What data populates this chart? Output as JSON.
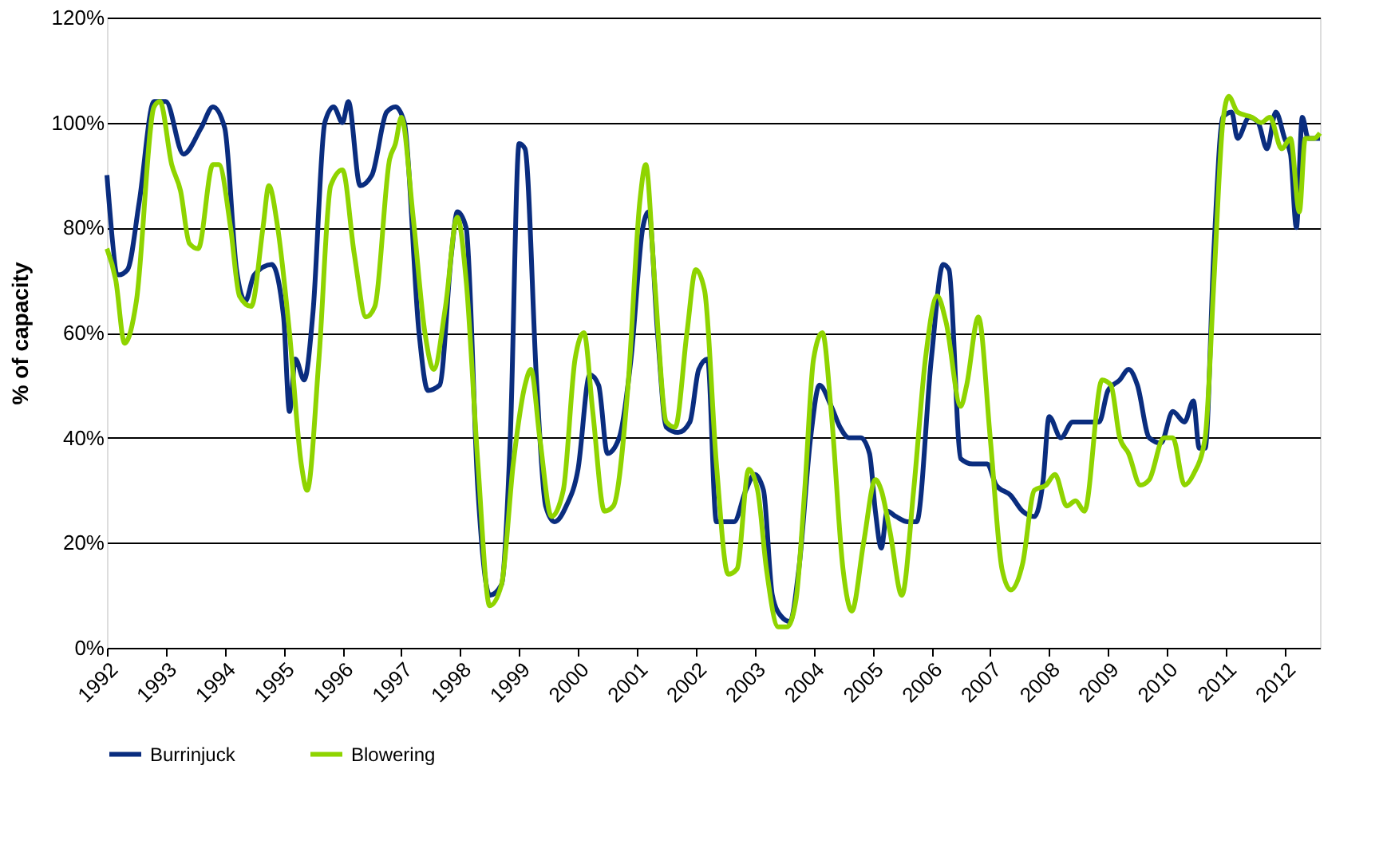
{
  "chart_data": {
    "type": "line",
    "ylabel": "% of capacity",
    "xlim": [
      1992,
      2012.6
    ],
    "xticks": [
      1992,
      1993,
      1994,
      1995,
      1996,
      1997,
      1998,
      1999,
      2000,
      2001,
      2002,
      2003,
      2004,
      2005,
      2006,
      2007,
      2008,
      2009,
      2010,
      2011,
      2012
    ],
    "ylim": [
      0,
      120
    ],
    "yticks": [
      {
        "value": 0,
        "label": "0%"
      },
      {
        "value": 20,
        "label": "20%"
      },
      {
        "value": 40,
        "label": "40%"
      },
      {
        "value": 60,
        "label": "60%"
      },
      {
        "value": 80,
        "label": "80%"
      },
      {
        "value": 100,
        "label": "100%"
      },
      {
        "value": 120,
        "label": "120%"
      }
    ],
    "grid": "y",
    "legend": "bottom",
    "marker": "none",
    "line_style": "solid",
    "series": [
      {
        "name": "Burrinjuck",
        "color": "#0a2d7f",
        "x": [
          1992.0,
          1992.2,
          1992.35,
          1992.55,
          1992.8,
          1993.0,
          1993.3,
          1993.6,
          1993.8,
          1994.0,
          1994.2,
          1994.35,
          1994.5,
          1994.8,
          1995.0,
          1995.1,
          1995.2,
          1995.35,
          1995.5,
          1995.7,
          1995.85,
          1996.0,
          1996.1,
          1996.3,
          1996.5,
          1996.75,
          1996.9,
          1997.05,
          1997.3,
          1997.45,
          1997.65,
          1997.85,
          1997.95,
          1998.1,
          1998.3,
          1998.5,
          1998.7,
          1998.85,
          1999.0,
          1999.1,
          1999.3,
          1999.45,
          1999.6,
          1999.8,
          2000.0,
          2000.2,
          2000.35,
          2000.5,
          2000.7,
          2000.9,
          2001.1,
          2001.2,
          2001.35,
          2001.5,
          2001.7,
          2001.9,
          2002.05,
          2002.2,
          2002.35,
          2002.5,
          2002.65,
          2002.85,
          2003.0,
          2003.15,
          2003.3,
          2003.45,
          2003.6,
          2003.75,
          2003.95,
          2004.1,
          2004.3,
          2004.45,
          2004.6,
          2004.8,
          2004.95,
          2005.05,
          2005.15,
          2005.25,
          2005.4,
          2005.6,
          2005.75,
          2006.0,
          2006.2,
          2006.3,
          2006.5,
          2006.7,
          2006.95,
          2007.1,
          2007.35,
          2007.55,
          2007.75,
          2007.9,
          2008.0,
          2008.2,
          2008.4,
          2008.6,
          2008.85,
          2009.0,
          2009.2,
          2009.35,
          2009.5,
          2009.7,
          2009.9,
          2010.1,
          2010.3,
          2010.45,
          2010.55,
          2010.65,
          2010.8,
          2010.95,
          2011.1,
          2011.2,
          2011.4,
          2011.55,
          2011.7,
          2011.85,
          2012.0,
          2012.1,
          2012.2,
          2012.3,
          2012.4,
          2012.6
        ],
        "values": [
          90,
          71,
          72,
          85,
          104,
          104,
          94,
          99,
          103,
          99,
          72,
          66,
          71,
          73,
          63,
          45,
          55,
          51,
          64,
          100,
          103,
          100,
          104,
          88,
          90,
          102,
          103,
          100,
          60,
          49,
          50,
          75,
          83,
          80,
          30,
          10,
          12,
          40,
          96,
          95,
          50,
          27,
          24,
          27,
          34,
          52,
          50,
          37,
          40,
          55,
          80,
          83,
          60,
          42,
          41,
          43,
          53,
          55,
          24,
          24,
          24,
          30,
          33,
          30,
          10,
          6,
          5,
          15,
          40,
          50,
          46,
          42,
          40,
          40,
          37,
          26,
          19,
          26,
          25,
          24,
          24,
          55,
          73,
          72,
          36,
          35,
          35,
          31,
          29,
          26,
          25,
          32,
          44,
          40,
          43,
          43,
          43,
          49,
          51,
          53,
          50,
          40,
          39,
          45,
          43,
          47,
          38,
          38,
          76,
          101,
          102,
          97,
          101,
          100,
          95,
          102,
          97,
          94,
          80,
          101,
          97,
          97
        ]
      },
      {
        "name": "Blowering",
        "color": "#8fd400",
        "x": [
          1992.0,
          1992.15,
          1992.3,
          1992.5,
          1992.8,
          1992.9,
          1993.1,
          1993.25,
          1993.4,
          1993.55,
          1993.8,
          1993.9,
          1994.1,
          1994.25,
          1994.45,
          1994.65,
          1994.75,
          1994.9,
          1995.1,
          1995.3,
          1995.4,
          1995.6,
          1995.8,
          1996.0,
          1996.2,
          1996.4,
          1996.55,
          1996.8,
          1996.9,
          1997.0,
          1997.2,
          1997.4,
          1997.55,
          1997.75,
          1997.95,
          1998.1,
          1998.3,
          1998.5,
          1998.7,
          1998.9,
          1999.1,
          1999.2,
          1999.35,
          1999.55,
          1999.75,
          1999.95,
          2000.1,
          2000.25,
          2000.45,
          2000.6,
          2000.85,
          2001.05,
          2001.15,
          2001.3,
          2001.5,
          2001.65,
          2001.85,
          2002.0,
          2002.15,
          2002.35,
          2002.55,
          2002.7,
          2002.9,
          2003.05,
          2003.2,
          2003.4,
          2003.55,
          2003.7,
          2003.85,
          2004.0,
          2004.15,
          2004.3,
          2004.5,
          2004.65,
          2004.85,
          2005.05,
          2005.15,
          2005.3,
          2005.5,
          2005.7,
          2005.9,
          2006.1,
          2006.25,
          2006.5,
          2006.6,
          2006.8,
          2007.0,
          2007.2,
          2007.35,
          2007.55,
          2007.75,
          2007.95,
          2008.1,
          2008.3,
          2008.45,
          2008.6,
          2008.9,
          2009.05,
          2009.2,
          2009.35,
          2009.55,
          2009.7,
          2009.95,
          2010.1,
          2010.3,
          2010.45,
          2010.65,
          2010.8,
          2010.95,
          2011.05,
          2011.2,
          2011.45,
          2011.6,
          2011.75,
          2011.95,
          2012.1,
          2012.25,
          2012.35,
          2012.5,
          2012.6
        ],
        "values": [
          76,
          70,
          58,
          66,
          103,
          104,
          92,
          87,
          77,
          76,
          92,
          92,
          80,
          67,
          65,
          80,
          88,
          80,
          60,
          35,
          30,
          55,
          88,
          91,
          75,
          63,
          65,
          93,
          96,
          101,
          82,
          60,
          53,
          65,
          82,
          70,
          35,
          8,
          12,
          35,
          50,
          53,
          40,
          25,
          30,
          55,
          60,
          45,
          26,
          27,
          50,
          85,
          92,
          70,
          43,
          42,
          60,
          72,
          68,
          35,
          14,
          15,
          34,
          30,
          15,
          4,
          4,
          9,
          30,
          55,
          60,
          45,
          15,
          7,
          20,
          32,
          30,
          22,
          10,
          30,
          55,
          67,
          62,
          46,
          50,
          63,
          40,
          15,
          11,
          16,
          30,
          31,
          33,
          27,
          28,
          26,
          51,
          50,
          40,
          37,
          31,
          32,
          40,
          40,
          31,
          33,
          40,
          70,
          100,
          105,
          102,
          101,
          100,
          101,
          95,
          97,
          83,
          97,
          97,
          98
        ]
      }
    ]
  }
}
